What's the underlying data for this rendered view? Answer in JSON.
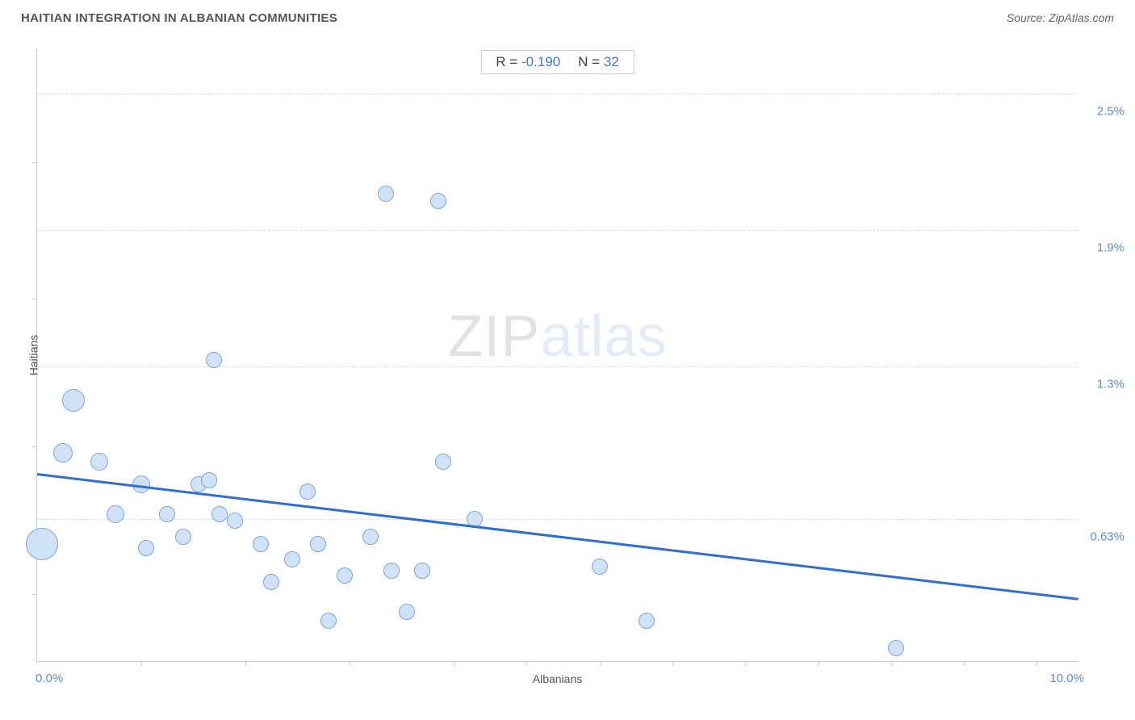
{
  "title": "HAITIAN INTEGRATION IN ALBANIAN COMMUNITIES",
  "source": "Source: ZipAtlas.com",
  "watermark": {
    "zip": "ZIP",
    "atlas": "atlas"
  },
  "stats": {
    "r_label": "R =",
    "r_value": "-0.190",
    "n_label": "N =",
    "n_value": "32"
  },
  "chart": {
    "type": "scatter",
    "xlabel": "Albanians",
    "ylabel": "Haitians",
    "xlim": [
      0.0,
      10.0
    ],
    "ylim": [
      0.0,
      2.7
    ],
    "x_range_labels": {
      "min": "0.0%",
      "max": "10.0%"
    },
    "y_gridlines": [
      0.63,
      1.3,
      1.9,
      2.5
    ],
    "y_grid_labels": [
      "0.63%",
      "1.3%",
      "1.9%",
      "2.5%"
    ],
    "x_ticks": [
      1.0,
      2.0,
      3.0,
      4.0,
      4.7,
      5.4,
      6.1,
      6.8,
      7.5,
      8.2,
      8.9,
      9.6
    ],
    "y_ticks": [
      0.3,
      0.95,
      1.6,
      2.2
    ],
    "background_color": "#ffffff",
    "grid_color": "#dddddd",
    "axis_color": "#cccccc",
    "marker_fill": "#d0e2f7",
    "marker_stroke": "#7ba7e0",
    "marker_stroke_width": 1.5,
    "trend_color": "#2e6fd1",
    "trend_width": 2.5,
    "trend_line": {
      "x1": 0.0,
      "y1": 0.83,
      "x2": 10.0,
      "y2": 0.28
    },
    "points": [
      {
        "x": 0.05,
        "y": 0.52,
        "r": 20
      },
      {
        "x": 0.35,
        "y": 1.15,
        "r": 14
      },
      {
        "x": 0.25,
        "y": 0.92,
        "r": 12
      },
      {
        "x": 0.6,
        "y": 0.88,
        "r": 11
      },
      {
        "x": 0.75,
        "y": 0.65,
        "r": 11
      },
      {
        "x": 1.0,
        "y": 0.78,
        "r": 11
      },
      {
        "x": 1.05,
        "y": 0.5,
        "r": 10
      },
      {
        "x": 1.25,
        "y": 0.65,
        "r": 10
      },
      {
        "x": 1.4,
        "y": 0.55,
        "r": 10
      },
      {
        "x": 1.55,
        "y": 0.78,
        "r": 10
      },
      {
        "x": 1.65,
        "y": 0.8,
        "r": 10
      },
      {
        "x": 1.7,
        "y": 1.33,
        "r": 10
      },
      {
        "x": 1.75,
        "y": 0.65,
        "r": 10
      },
      {
        "x": 2.15,
        "y": 0.52,
        "r": 10
      },
      {
        "x": 2.25,
        "y": 0.35,
        "r": 10
      },
      {
        "x": 2.45,
        "y": 0.45,
        "r": 10
      },
      {
        "x": 2.6,
        "y": 0.75,
        "r": 10
      },
      {
        "x": 2.7,
        "y": 0.52,
        "r": 10
      },
      {
        "x": 2.8,
        "y": 0.18,
        "r": 10
      },
      {
        "x": 2.95,
        "y": 0.38,
        "r": 10
      },
      {
        "x": 3.2,
        "y": 0.55,
        "r": 10
      },
      {
        "x": 3.35,
        "y": 2.06,
        "r": 10
      },
      {
        "x": 3.4,
        "y": 0.4,
        "r": 10
      },
      {
        "x": 3.55,
        "y": 0.22,
        "r": 10
      },
      {
        "x": 3.7,
        "y": 0.4,
        "r": 10
      },
      {
        "x": 3.85,
        "y": 2.03,
        "r": 10
      },
      {
        "x": 3.9,
        "y": 0.88,
        "r": 10
      },
      {
        "x": 4.2,
        "y": 0.63,
        "r": 10
      },
      {
        "x": 5.4,
        "y": 0.42,
        "r": 10
      },
      {
        "x": 5.85,
        "y": 0.18,
        "r": 10
      },
      {
        "x": 8.25,
        "y": 0.06,
        "r": 10
      },
      {
        "x": 1.9,
        "y": 0.62,
        "r": 10
      }
    ]
  }
}
